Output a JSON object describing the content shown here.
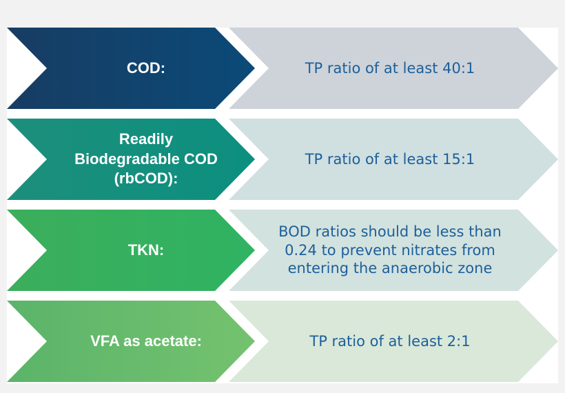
{
  "rows": [
    {
      "label": "COD:",
      "value": "TP ratio of at least 40:1"
    },
    {
      "label": "Readily\nBiodegradable COD\n(rbCOD):",
      "value": "TP ratio of at least 15:1"
    },
    {
      "label": "TKN:",
      "value": "BOD ratios should be less than\n0.24 to prevent nitrates from\nentering the anaerobic zone"
    },
    {
      "label": "VFA as acetate:",
      "value": "TP ratio of at least 2:1"
    }
  ],
  "colors": {
    "row_1_left": "#0b4a78",
    "row_2_left": "#0c8f7f",
    "row_3_left": "#2fb362",
    "row_4_left": "#74c26f",
    "value_text": "#1d5f9a"
  }
}
